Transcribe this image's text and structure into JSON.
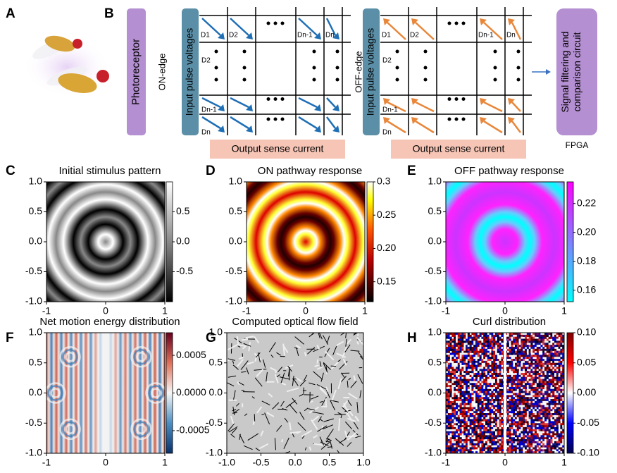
{
  "figure": {
    "panel_labels": [
      "A",
      "B",
      "C",
      "D",
      "E",
      "F",
      "G",
      "H"
    ],
    "diagram": {
      "photoreceptor": "Photoreceptor",
      "on_edge": "ON-edge",
      "off_edge": "OFF-edge",
      "input_label": "Input pulse voltages",
      "output_label": "Output sense current",
      "columns": [
        "D1",
        "D2",
        "Dn-1",
        "Dn"
      ],
      "rows": [
        "D2",
        "Dn-1",
        "Dn"
      ],
      "signal": "Signal filtering and comparison circuit",
      "fpga": "FPGA"
    }
  },
  "chart_data": [
    {
      "type": "heatmap",
      "title": "Initial stimulus pattern",
      "colormap": "gray",
      "xlim": [
        -1,
        1
      ],
      "ylim": [
        -1,
        1
      ],
      "xticks": [
        -1,
        0,
        1
      ],
      "yticks": [
        {
          "value": 1,
          "label": "1.0"
        },
        {
          "value": 0.5,
          "label": "0.5"
        },
        {
          "value": 0,
          "label": "0.0"
        },
        {
          "value": -0.5,
          "label": "-0.5"
        },
        {
          "value": -1,
          "label": "-1.0"
        }
      ],
      "clim": [
        -1,
        1
      ],
      "cticks": [
        0.5,
        {
          "value": 0,
          "label": "0.0"
        },
        -0.5
      ]
    },
    {
      "type": "heatmap",
      "title": "ON pathway response",
      "colormap": "hot",
      "xlim": [
        -1,
        1
      ],
      "ylim": [
        -1,
        1
      ],
      "xticks": [
        -1,
        0,
        1
      ],
      "yticks": [
        {
          "value": 1,
          "label": "1.0"
        },
        {
          "value": 0.5,
          "label": "0.5"
        },
        {
          "value": 0,
          "label": "0.0"
        },
        {
          "value": -0.5,
          "label": "-0.5"
        },
        {
          "value": -1,
          "label": "-1.0"
        }
      ],
      "clim": [
        0.12,
        0.3
      ],
      "cticks": [
        0.3,
        0.25,
        {
          "value": 0.2,
          "label": "0.20"
        },
        0.15
      ]
    },
    {
      "type": "heatmap",
      "title": "OFF pathway response",
      "colormap": "cool",
      "xlim": [
        -1,
        1
      ],
      "ylim": [
        -1,
        1
      ],
      "xticks": [
        -1,
        0,
        1
      ],
      "yticks": [
        {
          "value": 1,
          "label": "1.0"
        },
        {
          "value": 0.5,
          "label": "0.5"
        },
        {
          "value": 0,
          "label": "0.0"
        },
        {
          "value": -0.5,
          "label": "-0.5"
        },
        {
          "value": -1,
          "label": "-1.0"
        }
      ],
      "clim": [
        0.152,
        0.235
      ],
      "cticks": [
        0.22,
        {
          "value": 0.2,
          "label": "0.20"
        },
        0.18,
        0.16
      ]
    },
    {
      "type": "heatmap",
      "title": "Net motion energy distribution",
      "colormap": "RdBu",
      "xlim": [
        -1,
        1
      ],
      "ylim": [
        -1,
        1
      ],
      "xticks": [
        -1,
        0,
        1
      ],
      "yticks": [
        {
          "value": 1,
          "label": "1.0"
        },
        {
          "value": 0.5,
          "label": "0.5"
        },
        {
          "value": 0,
          "label": "0.0"
        },
        {
          "value": -0.5,
          "label": "-0.5"
        },
        {
          "value": -1,
          "label": "-1.0"
        }
      ],
      "clim": [
        -0.0008,
        0.0008
      ],
      "cticks": [
        0.0005,
        {
          "value": 0,
          "label": "0.0000"
        },
        -0.0005
      ]
    },
    {
      "type": "quiver",
      "title": "Computed optical flow field",
      "xlim": [
        -1,
        1
      ],
      "ylim": [
        -1,
        1
      ],
      "xticks": [
        {
          "value": -1,
          "label": "-1.0"
        },
        {
          "value": -0.5,
          "label": "-0.5"
        },
        {
          "value": 0,
          "label": "0.0"
        },
        {
          "value": 0.5,
          "label": "0.5"
        },
        {
          "value": 1,
          "label": "1.0"
        }
      ],
      "yticks": [
        {
          "value": 1,
          "label": "1.0"
        },
        {
          "value": 0.5,
          "label": "0.5"
        },
        {
          "value": 0,
          "label": "0.0"
        },
        {
          "value": -0.5,
          "label": "-0.5"
        },
        {
          "value": -1,
          "label": "-1.0"
        }
      ]
    },
    {
      "type": "heatmap",
      "title": "Curl distribution",
      "colormap": "seismic",
      "xlim": [
        -1,
        1
      ],
      "ylim": [
        -1,
        1
      ],
      "xticks": [
        -1,
        0,
        1
      ],
      "yticks": [
        {
          "value": 1,
          "label": "1.0"
        },
        {
          "value": 0.5,
          "label": "0.5"
        },
        {
          "value": 0,
          "label": "0.0"
        },
        {
          "value": -0.5,
          "label": "-0.5"
        },
        {
          "value": -1,
          "label": "-1.0"
        }
      ],
      "clim": [
        -0.1,
        0.1
      ],
      "cticks": [
        {
          "value": 0.1,
          "label": "0.10"
        },
        0.05,
        {
          "value": 0,
          "label": "0.00"
        },
        -0.05,
        {
          "value": -0.1,
          "label": "-0.10"
        }
      ]
    }
  ]
}
